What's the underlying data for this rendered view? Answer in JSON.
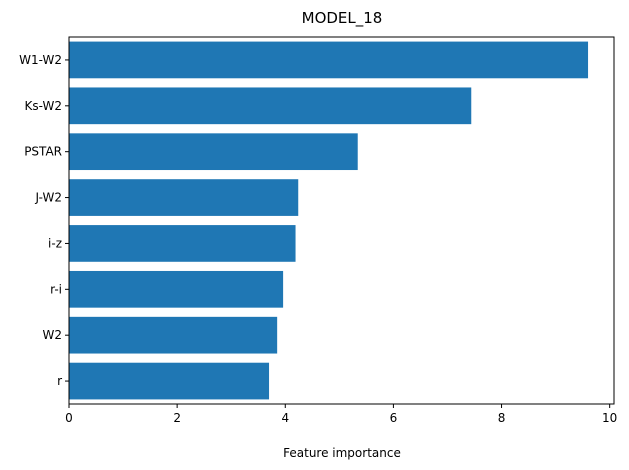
{
  "chart_data": {
    "type": "bar",
    "orientation": "horizontal",
    "title": "MODEL_18",
    "xlabel": "Feature importance",
    "ylabel": "",
    "categories": [
      "W1-W2",
      "Ks-W2",
      "PSTAR",
      "J-W2",
      "i-z",
      "r-i",
      "W2",
      "r"
    ],
    "values": [
      9.6,
      7.44,
      5.34,
      4.24,
      4.19,
      3.96,
      3.85,
      3.7
    ],
    "xlim": [
      0,
      10.08
    ],
    "xticks": [
      "0",
      "2",
      "4",
      "6",
      "8",
      "10"
    ],
    "xtick_values": [
      0,
      2,
      4,
      6,
      8,
      10
    ],
    "grid": false,
    "legend": "none",
    "bar_color": "#1f77b4"
  }
}
